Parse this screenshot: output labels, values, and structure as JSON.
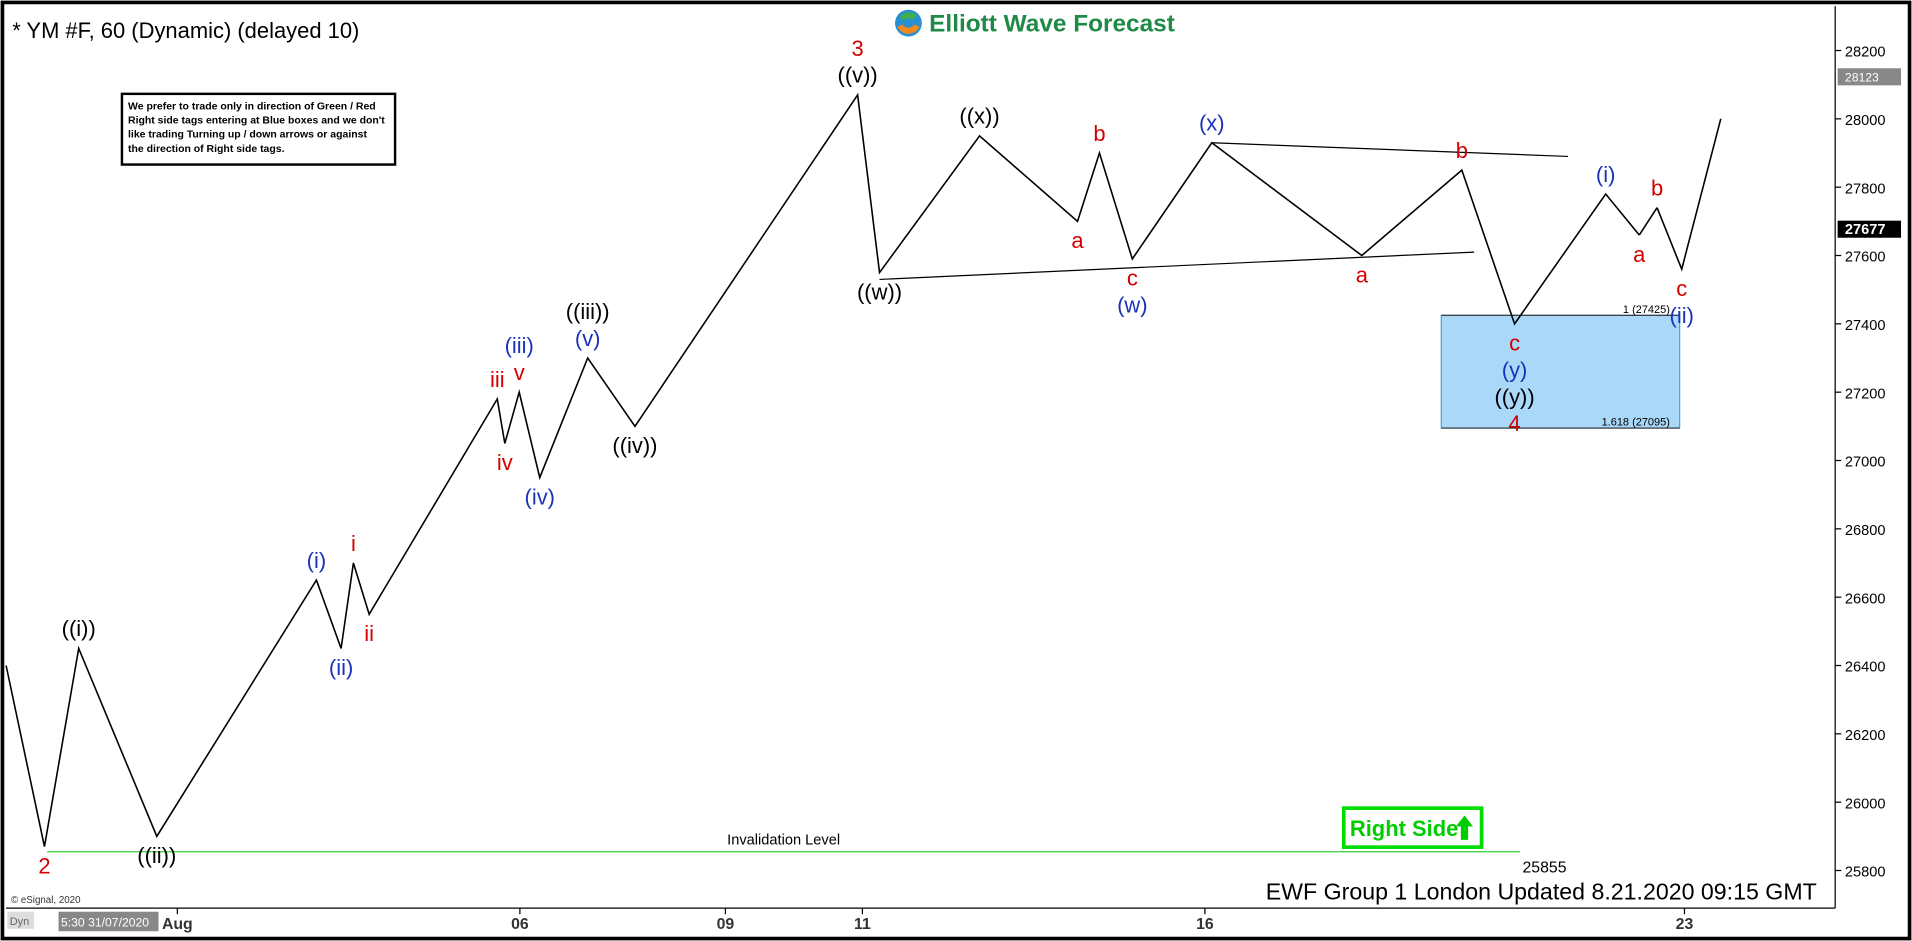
{
  "chart_data": {
    "type": "line",
    "title": "* YM #F, 60 (Dynamic) (delayed 10)",
    "logo": "Elliott Wave Forecast",
    "note": [
      "We prefer to trade only in direction of Green / Red",
      "Right side tags entering at Blue boxes and we don't",
      "like trading Turning up / down arrows or against",
      "the direction of Right side tags."
    ],
    "right_side": "Right Side",
    "footer": "EWF Group 1 London Updated 8.21.2020 09:15 GMT",
    "copyright": "© eSignal, 2020",
    "cursor_label": "5:30 31/07/2020",
    "mode_label": "Dyn",
    "xlim": [
      -1.5,
      25.2
    ],
    "xticks": [
      {
        "value": 1,
        "label": "Aug"
      },
      {
        "value": 6,
        "label": "06"
      },
      {
        "value": 9,
        "label": "09"
      },
      11,
      16,
      23
    ],
    "ylim": [
      25690,
      28330
    ],
    "yticks": [
      25800,
      26000,
      26200,
      26400,
      26600,
      26800,
      27000,
      27200,
      27400,
      27600,
      27800,
      28000,
      28200
    ],
    "series": [
      {
        "color": "#000000",
        "x": [
          -1.5,
          -0.94,
          -0.44,
          0.7,
          3.03,
          3.39,
          3.57,
          3.8,
          5.67,
          5.78,
          5.99,
          6.29,
          6.99,
          7.68,
          10.93,
          11.25,
          12.71,
          14.14,
          14.46,
          14.94,
          16.1,
          18.29,
          19.75,
          20.52,
          21.85,
          22.34
        ],
        "values": [
          26400,
          25870,
          26450,
          25900,
          26650,
          26450,
          26700,
          26550,
          27180,
          27050,
          27200,
          26950,
          27300,
          27100,
          28070,
          27550,
          27950,
          27700,
          27900,
          27590,
          27930,
          27600,
          27850,
          27400,
          27780,
          27660
        ],
        "labels": [
          [],
          [
            {
              "text": "2",
              "color": "#d40000"
            }
          ],
          [
            {
              "text": "((i))",
              "color": "#000000"
            }
          ],
          [
            {
              "text": "((ii))",
              "color": "#000000"
            }
          ],
          [
            {
              "text": "(i)",
              "color": "#1a33b8"
            }
          ],
          [
            {
              "text": "(ii)",
              "color": "#1a33b8"
            }
          ],
          [
            {
              "text": "i",
              "color": "#d40000"
            }
          ],
          [
            {
              "text": "ii",
              "color": "#d40000"
            }
          ],
          [
            {
              "text": "iii",
              "color": "#d40000"
            }
          ],
          [
            {
              "text": "iv",
              "color": "#d40000"
            }
          ],
          [
            {
              "text": "v",
              "color": "#d40000"
            },
            {
              "text": "(iii)",
              "color": "#1a33b8"
            }
          ],
          [
            {
              "text": "(iv)",
              "color": "#1a33b8"
            }
          ],
          [
            {
              "text": "(v)",
              "color": "#1a33b8"
            },
            {
              "text": "((iii))",
              "color": "#000000"
            }
          ],
          [
            {
              "text": "((iv))",
              "color": "#000000"
            }
          ],
          [
            {
              "text": "((v))",
              "color": "#000000"
            },
            {
              "text": "3",
              "color": "#d40000"
            }
          ],
          [
            {
              "text": "((w))",
              "color": "#000000"
            }
          ],
          [
            {
              "text": "((x))",
              "color": "#000000"
            }
          ],
          [
            {
              "text": "a",
              "color": "#d40000"
            }
          ],
          [
            {
              "text": "b",
              "color": "#d40000"
            }
          ],
          [
            {
              "text": "c",
              "color": "#d40000"
            },
            {
              "text": "(w)",
              "color": "#1a33b8"
            }
          ],
          [
            {
              "text": "(x)",
              "color": "#1a33b8"
            }
          ],
          [
            {
              "text": "a",
              "color": "#d40000"
            }
          ],
          [
            {
              "text": "b",
              "color": "#d40000"
            }
          ],
          [
            {
              "text": "c",
              "color": "#d40000"
            },
            {
              "text": "(y)",
              "color": "#1a33b8"
            },
            {
              "text": "((y))",
              "color": "#000000"
            },
            {
              "text": "4",
              "color": "#d40000"
            }
          ],
          [
            {
              "text": "(i)",
              "color": "#1a33b8"
            }
          ],
          [
            {
              "text": "a",
              "color": "#d40000"
            }
          ]
        ]
      },
      {
        "color": "#000000",
        "x": [
          22.6,
          22.96,
          23.53
        ],
        "values": [
          27740,
          27560,
          28000
        ],
        "labels": [
          [
            {
              "text": "b",
              "color": "#d40000"
            }
          ],
          [
            {
              "text": "c",
              "color": "#d40000"
            },
            {
              "text": "(ii)",
              "color": "#1a33b8"
            }
          ],
          []
        ]
      }
    ],
    "trendlines": [
      {
        "x": [
          16.1,
          21.3
        ],
        "values": [
          27930,
          27890
        ]
      },
      {
        "x": [
          11.25,
          19.93
        ],
        "values": [
          27530,
          27610
        ]
      }
    ],
    "invalidation": {
      "label": "Invalidation Level",
      "value": 25855,
      "x": [
        -0.9,
        20.6
      ],
      "color": "#33cc33"
    },
    "target_box": {
      "x": [
        19.45,
        22.93
      ],
      "color": "#aad8f8",
      "levels": [
        {
          "value": 27425,
          "label": "1 (27425)"
        },
        {
          "value": 27095,
          "label": "1.618 (27095)"
        }
      ]
    },
    "price_markers": [
      {
        "value": 28123,
        "style": "gray"
      },
      {
        "value": 27677,
        "style": "black"
      }
    ]
  }
}
